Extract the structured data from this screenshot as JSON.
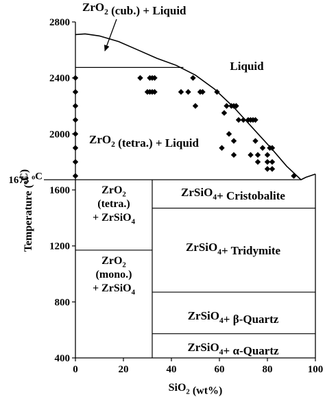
{
  "chart_data": {
    "type": "scatter",
    "title": "",
    "xlabel": {
      "main": "SiO",
      "sub": "2",
      "tail": " (wt%)"
    },
    "ylabel": {
      "main": "Temperature (",
      "sup": "o",
      "tail": "C)"
    },
    "xlim": [
      0,
      100
    ],
    "ylim": [
      400,
      2800
    ],
    "xticks": [
      0,
      20,
      40,
      60,
      80,
      100
    ],
    "yticks": [
      400,
      800,
      1200,
      1600,
      2000,
      2400,
      2800
    ],
    "isotherm_label": {
      "main": "1673 ",
      "sup": "o",
      "tail": "C"
    },
    "isotherm_value": 1673,
    "series": [
      {
        "points": [
          {
            "x": 0,
            "y": 2400
          },
          {
            "x": 0,
            "y": 2300
          },
          {
            "x": 0,
            "y": 2200
          },
          {
            "x": 0,
            "y": 2100
          },
          {
            "x": 0,
            "y": 2000
          },
          {
            "x": 0,
            "y": 1900
          },
          {
            "x": 0,
            "y": 1800
          },
          {
            "x": 0,
            "y": 1700
          },
          {
            "x": 27,
            "y": 2400
          },
          {
            "x": 31,
            "y": 2400
          },
          {
            "x": 32,
            "y": 2400
          },
          {
            "x": 33,
            "y": 2400
          },
          {
            "x": 49,
            "y": 2400
          },
          {
            "x": 30,
            "y": 2300
          },
          {
            "x": 31,
            "y": 2300
          },
          {
            "x": 32,
            "y": 2300
          },
          {
            "x": 33,
            "y": 2300
          },
          {
            "x": 44,
            "y": 2300
          },
          {
            "x": 47,
            "y": 2300
          },
          {
            "x": 52,
            "y": 2300
          },
          {
            "x": 53,
            "y": 2300
          },
          {
            "x": 50,
            "y": 2200
          },
          {
            "x": 63,
            "y": 2200
          },
          {
            "x": 65,
            "y": 2200
          },
          {
            "x": 66,
            "y": 2200
          },
          {
            "x": 67,
            "y": 2200
          },
          {
            "x": 59,
            "y": 2300
          },
          {
            "x": 62,
            "y": 2150
          },
          {
            "x": 68,
            "y": 2100
          },
          {
            "x": 70,
            "y": 2100
          },
          {
            "x": 72,
            "y": 2100
          },
          {
            "x": 73,
            "y": 2100
          },
          {
            "x": 74,
            "y": 2100
          },
          {
            "x": 75,
            "y": 2100
          },
          {
            "x": 64,
            "y": 2000
          },
          {
            "x": 66,
            "y": 1950
          },
          {
            "x": 75,
            "y": 1950
          },
          {
            "x": 61,
            "y": 1900
          },
          {
            "x": 78,
            "y": 1900
          },
          {
            "x": 81,
            "y": 1900
          },
          {
            "x": 82,
            "y": 1900
          },
          {
            "x": 66,
            "y": 1850
          },
          {
            "x": 73,
            "y": 1850
          },
          {
            "x": 76,
            "y": 1850
          },
          {
            "x": 80,
            "y": 1850
          },
          {
            "x": 76,
            "y": 1800
          },
          {
            "x": 80,
            "y": 1800
          },
          {
            "x": 82,
            "y": 1800
          },
          {
            "x": 80,
            "y": 1750
          },
          {
            "x": 82,
            "y": 1750
          },
          {
            "x": 91,
            "y": 1700
          }
        ]
      }
    ],
    "liquidus_curve": [
      {
        "x": 0,
        "y": 2710
      },
      {
        "x": 4,
        "y": 2715
      },
      {
        "x": 10,
        "y": 2700
      },
      {
        "x": 18,
        "y": 2660
      },
      {
        "x": 26,
        "y": 2600
      },
      {
        "x": 34,
        "y": 2540
      },
      {
        "x": 42,
        "y": 2490
      },
      {
        "x": 50,
        "y": 2420
      },
      {
        "x": 58,
        "y": 2320
      },
      {
        "x": 66,
        "y": 2190
      },
      {
        "x": 74,
        "y": 2040
      },
      {
        "x": 82,
        "y": 1890
      },
      {
        "x": 88,
        "y": 1770
      },
      {
        "x": 94,
        "y": 1673
      },
      {
        "x": 96,
        "y": 1690
      },
      {
        "x": 100,
        "y": 1713
      }
    ],
    "phase_lines": [
      {
        "x1": 0,
        "y1": 2475,
        "x2": 45,
        "y2": 2475
      },
      {
        "x1": 0,
        "y1": 1673,
        "x2": 94,
        "y2": 1673
      },
      {
        "x1": 32,
        "y1": 1673,
        "x2": 32,
        "y2": 400
      },
      {
        "x1": 0,
        "y1": 1170,
        "x2": 32,
        "y2": 1170
      },
      {
        "x1": 32,
        "y1": 1470,
        "x2": 100,
        "y2": 1470
      },
      {
        "x1": 32,
        "y1": 870,
        "x2": 100,
        "y2": 870
      },
      {
        "x1": 32,
        "y1": 573,
        "x2": 100,
        "y2": 573
      }
    ],
    "annotations": [
      {
        "lines": [
          [
            {
              "t": "ZrO"
            },
            {
              "sub": "2"
            },
            {
              "t": " (cub.) + Liquid"
            }
          ]
        ]
      },
      {
        "lines": [
          [
            {
              "t": "Liquid"
            }
          ]
        ]
      },
      {
        "lines": [
          [
            {
              "t": "ZrO"
            },
            {
              "sub": "2"
            },
            {
              "t": " (tetra.) + Liquid"
            }
          ]
        ]
      },
      {
        "lines": [
          [
            {
              "t": "ZrO"
            },
            {
              "sub": "2"
            }
          ],
          [
            {
              "t": "(tetra.)"
            }
          ],
          [
            {
              "t": "+ ZrSiO"
            },
            {
              "sub": "4"
            }
          ]
        ]
      },
      {
        "lines": [
          [
            {
              "t": "ZrO"
            },
            {
              "sub": "2"
            }
          ],
          [
            {
              "t": "(mono.)"
            }
          ],
          [
            {
              "t": "+ ZrSiO"
            },
            {
              "sub": "4"
            }
          ]
        ]
      },
      {
        "lines": [
          [
            {
              "t": "ZrSiO"
            },
            {
              "sub": "4"
            },
            {
              "t": "+ Cristobalite"
            }
          ]
        ]
      },
      {
        "lines": [
          [
            {
              "t": "ZrSiO"
            },
            {
              "sub": "4"
            },
            {
              "t": "+ Tridymite"
            }
          ]
        ]
      },
      {
        "lines": [
          [
            {
              "t": "ZrSiO"
            },
            {
              "sub": "4"
            },
            {
              "t": "+ β-Quartz"
            }
          ]
        ]
      },
      {
        "lines": [
          [
            {
              "t": "ZrSiO"
            },
            {
              "sub": "4"
            },
            {
              "t": "+ α-Quartz"
            }
          ]
        ]
      }
    ],
    "colors": {
      "ink": "#000000",
      "background": "#ffffff"
    },
    "grid": false,
    "legend": "none"
  }
}
